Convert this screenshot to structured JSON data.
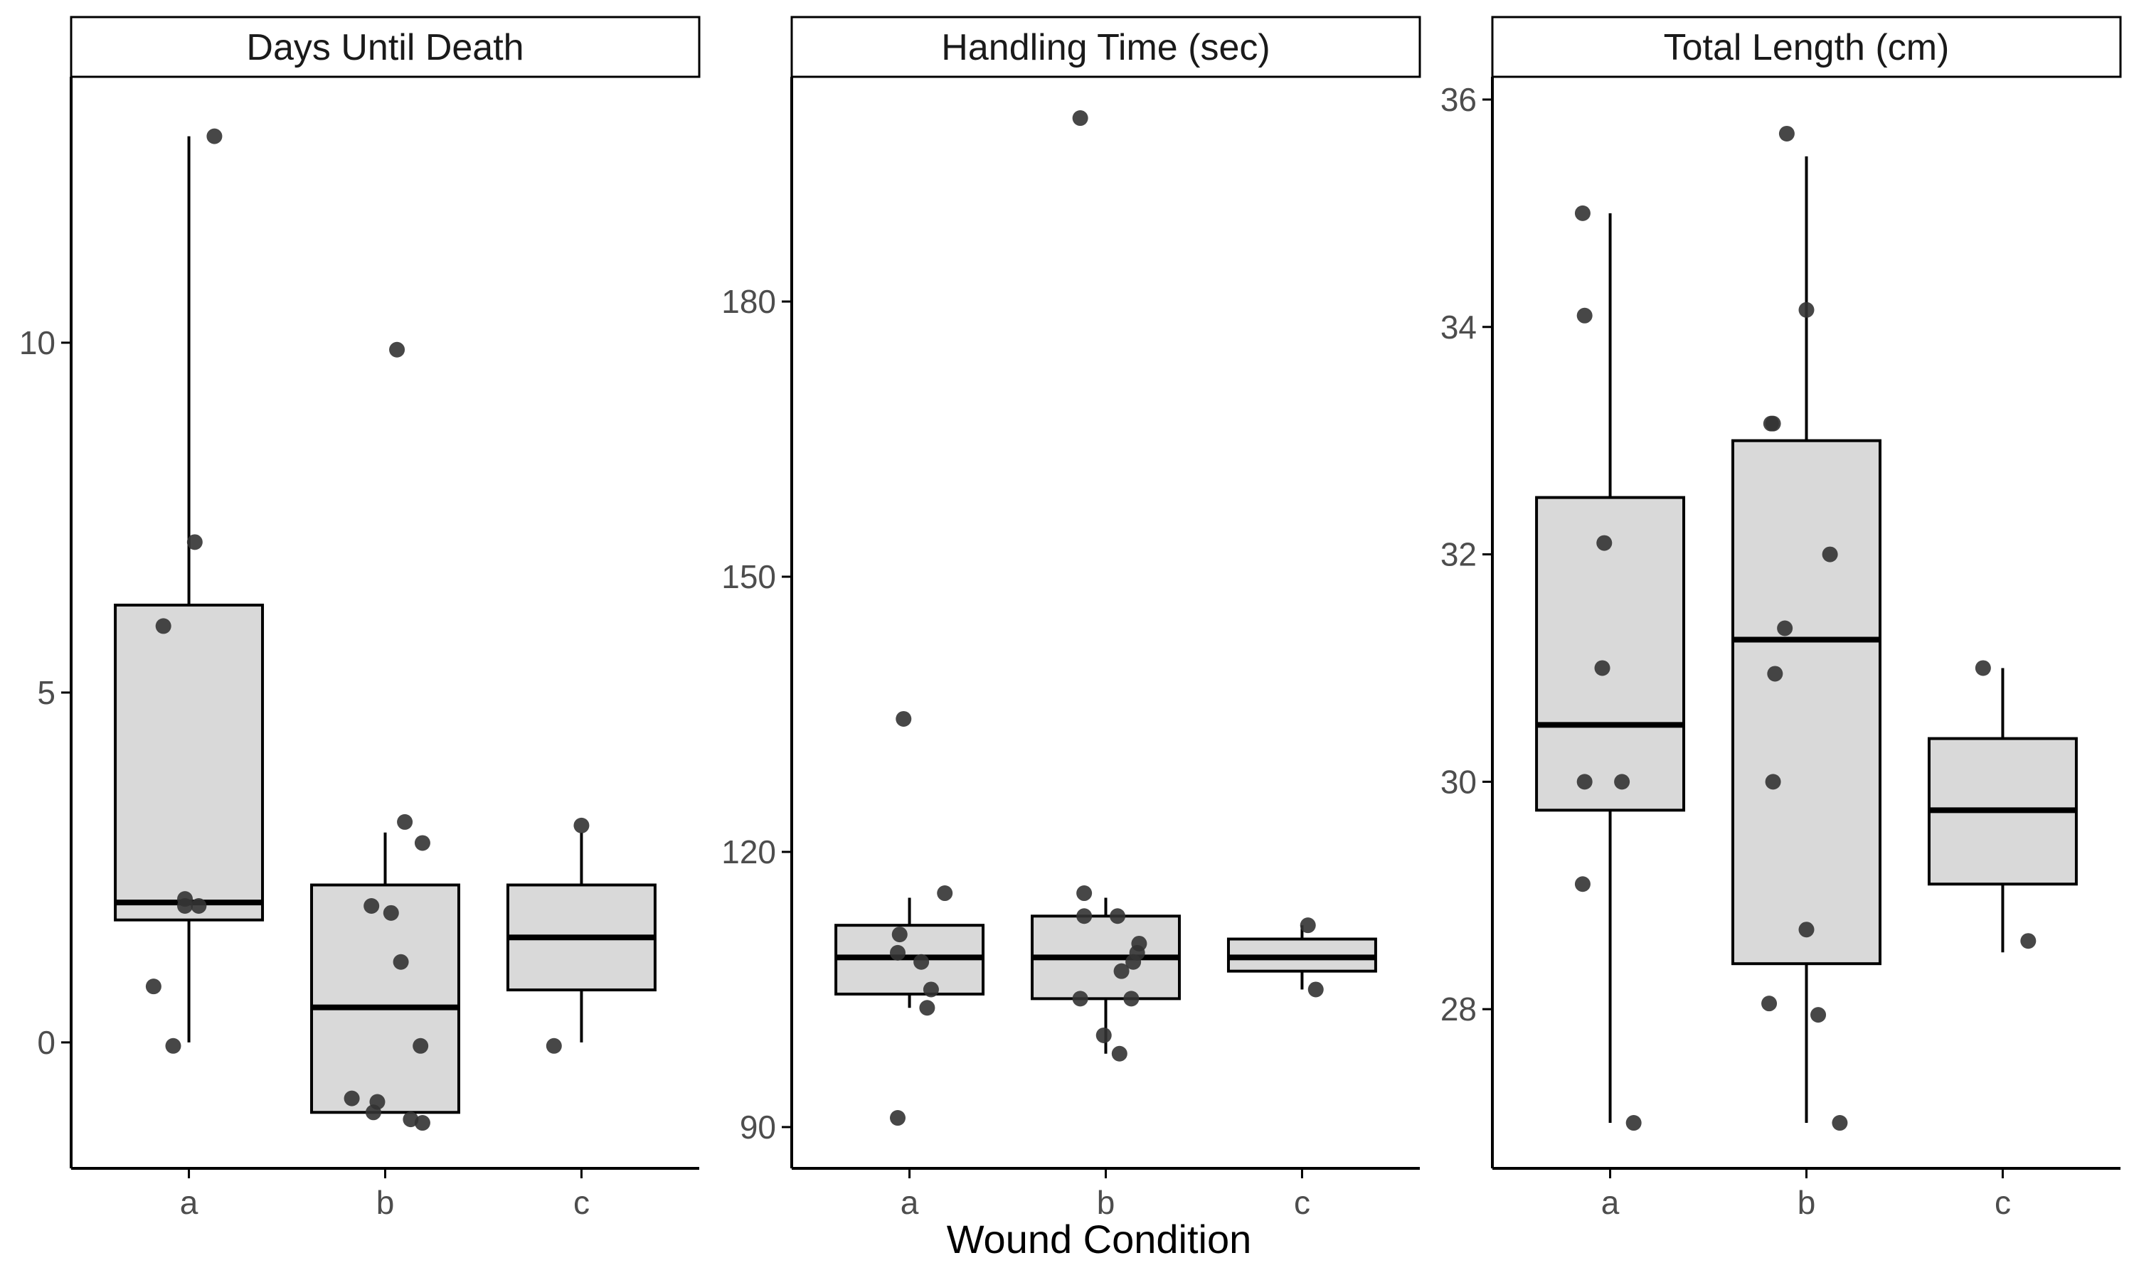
{
  "chart_data": [
    {
      "type": "boxplot",
      "title": "Days Until Death",
      "categories": [
        "a",
        "b",
        "c"
      ],
      "yticks": [
        0,
        5,
        10
      ],
      "ylim": [
        -1.8,
        13.8
      ],
      "boxes": [
        {
          "category": "a",
          "whisker_low": 0,
          "q1": 1.75,
          "median": 2.0,
          "q3": 6.25,
          "whisker_high": 12.95
        },
        {
          "category": "b",
          "whisker_low": -1.0,
          "q1": -1.0,
          "median": 0.5,
          "q3": 2.25,
          "whisker_high": 3.0
        },
        {
          "category": "c",
          "whisker_low": 0,
          "q1": 0.75,
          "median": 1.5,
          "q3": 2.25,
          "whisker_high": 3.0
        }
      ],
      "points": [
        {
          "category": "a",
          "jitter": 0.13,
          "value": 12.95
        },
        {
          "category": "a",
          "jitter": 0.03,
          "value": 7.15
        },
        {
          "category": "a",
          "jitter": -0.13,
          "value": 5.95
        },
        {
          "category": "a",
          "jitter": -0.02,
          "value": 2.05
        },
        {
          "category": "a",
          "jitter": 0.05,
          "value": 1.95
        },
        {
          "category": "a",
          "jitter": -0.02,
          "value": 1.95
        },
        {
          "category": "a",
          "jitter": -0.18,
          "value": 0.8
        },
        {
          "category": "a",
          "jitter": -0.08,
          "value": -0.05
        },
        {
          "category": "b",
          "jitter": 0.06,
          "value": 9.9
        },
        {
          "category": "b",
          "jitter": 0.1,
          "value": 3.15
        },
        {
          "category": "b",
          "jitter": 0.19,
          "value": 2.85
        },
        {
          "category": "b",
          "jitter": -0.07,
          "value": 1.95
        },
        {
          "category": "b",
          "jitter": 0.03,
          "value": 1.85
        },
        {
          "category": "b",
          "jitter": 0.08,
          "value": 1.15
        },
        {
          "category": "b",
          "jitter": 0.18,
          "value": -0.05
        },
        {
          "category": "b",
          "jitter": -0.17,
          "value": -0.8
        },
        {
          "category": "b",
          "jitter": -0.04,
          "value": -0.85
        },
        {
          "category": "b",
          "jitter": -0.06,
          "value": -1.0
        },
        {
          "category": "b",
          "jitter": 0.13,
          "value": -1.1
        },
        {
          "category": "b",
          "jitter": 0.19,
          "value": -1.15
        },
        {
          "category": "c",
          "jitter": 0.0,
          "value": 3.1
        },
        {
          "category": "c",
          "jitter": -0.14,
          "value": -0.05
        }
      ]
    },
    {
      "type": "boxplot",
      "title": "Handling Time (sec)",
      "categories": [
        "a",
        "b",
        "c"
      ],
      "yticks": [
        90,
        120,
        150,
        180
      ],
      "ylim": [
        85.5,
        204.5
      ],
      "boxes": [
        {
          "category": "a",
          "whisker_low": 103,
          "q1": 104.5,
          "median": 108.5,
          "q3": 112.0,
          "whisker_high": 115.0
        },
        {
          "category": "b",
          "whisker_low": 98,
          "q1": 104.0,
          "median": 108.5,
          "q3": 113.0,
          "whisker_high": 115.0
        },
        {
          "category": "c",
          "whisker_low": 105,
          "q1": 107.0,
          "median": 108.5,
          "q3": 110.5,
          "whisker_high": 112.0
        }
      ],
      "points": [
        {
          "category": "a",
          "jitter": -0.03,
          "value": 134.5
        },
        {
          "category": "a",
          "jitter": 0.18,
          "value": 115.5
        },
        {
          "category": "a",
          "jitter": -0.05,
          "value": 111.0
        },
        {
          "category": "a",
          "jitter": -0.06,
          "value": 109.0
        },
        {
          "category": "a",
          "jitter": 0.06,
          "value": 108.0
        },
        {
          "category": "a",
          "jitter": 0.11,
          "value": 105.0
        },
        {
          "category": "a",
          "jitter": 0.09,
          "value": 103.0
        },
        {
          "category": "a",
          "jitter": -0.06,
          "value": 91.0
        },
        {
          "category": "b",
          "jitter": -0.13,
          "value": 200.0
        },
        {
          "category": "b",
          "jitter": -0.11,
          "value": 115.5
        },
        {
          "category": "b",
          "jitter": -0.11,
          "value": 113.0
        },
        {
          "category": "b",
          "jitter": 0.06,
          "value": 113.0
        },
        {
          "category": "b",
          "jitter": 0.17,
          "value": 110.0
        },
        {
          "category": "b",
          "jitter": 0.16,
          "value": 109.0
        },
        {
          "category": "b",
          "jitter": 0.14,
          "value": 108.0
        },
        {
          "category": "b",
          "jitter": 0.08,
          "value": 107.0
        },
        {
          "category": "b",
          "jitter": -0.13,
          "value": 104.0
        },
        {
          "category": "b",
          "jitter": 0.13,
          "value": 104.0
        },
        {
          "category": "b",
          "jitter": -0.01,
          "value": 100.0
        },
        {
          "category": "b",
          "jitter": 0.07,
          "value": 98.0
        },
        {
          "category": "c",
          "jitter": 0.03,
          "value": 112.0
        },
        {
          "category": "c",
          "jitter": 0.07,
          "value": 105.0
        }
      ]
    },
    {
      "type": "boxplot",
      "title": "Total Length (cm)",
      "categories": [
        "a",
        "b",
        "c"
      ],
      "yticks": [
        28,
        30,
        32,
        34,
        36
      ],
      "ylim": [
        26.6,
        36.2
      ],
      "boxes": [
        {
          "category": "a",
          "whisker_low": 27.0,
          "q1": 29.75,
          "median": 30.5,
          "q3": 32.5,
          "whisker_high": 35.0
        },
        {
          "category": "b",
          "whisker_low": 27.0,
          "q1": 28.4,
          "median": 31.25,
          "q3": 33.0,
          "whisker_high": 35.5
        },
        {
          "category": "c",
          "whisker_low": 28.5,
          "q1": 29.1,
          "median": 29.75,
          "q3": 30.38,
          "whisker_high": 31.0
        }
      ],
      "points": [
        {
          "category": "a",
          "jitter": -0.14,
          "value": 35.0
        },
        {
          "category": "a",
          "jitter": -0.13,
          "value": 34.1
        },
        {
          "category": "a",
          "jitter": -0.03,
          "value": 32.1
        },
        {
          "category": "a",
          "jitter": -0.04,
          "value": 31.0
        },
        {
          "category": "a",
          "jitter": 0.06,
          "value": 30.0
        },
        {
          "category": "a",
          "jitter": -0.13,
          "value": 30.0
        },
        {
          "category": "a",
          "jitter": -0.14,
          "value": 29.1
        },
        {
          "category": "a",
          "jitter": 0.12,
          "value": 27.0
        },
        {
          "category": "b",
          "jitter": -0.1,
          "value": 35.7
        },
        {
          "category": "b",
          "jitter": 0.0,
          "value": 34.15
        },
        {
          "category": "b",
          "jitter": -0.17,
          "value": 33.15
        },
        {
          "category": "b",
          "jitter": -0.18,
          "value": 33.15
        },
        {
          "category": "b",
          "jitter": 0.12,
          "value": 32.0
        },
        {
          "category": "b",
          "jitter": -0.11,
          "value": 31.35
        },
        {
          "category": "b",
          "jitter": -0.16,
          "value": 30.95
        },
        {
          "category": "b",
          "jitter": -0.17,
          "value": 30.0
        },
        {
          "category": "b",
          "jitter": 0.0,
          "value": 28.7
        },
        {
          "category": "b",
          "jitter": -0.19,
          "value": 28.05
        },
        {
          "category": "b",
          "jitter": 0.06,
          "value": 27.95
        },
        {
          "category": "b",
          "jitter": 0.17,
          "value": 27.0
        },
        {
          "category": "c",
          "jitter": -0.1,
          "value": 31.0
        },
        {
          "category": "c",
          "jitter": 0.13,
          "value": 28.6
        }
      ]
    }
  ],
  "shared_xlabel": "Wound Condition",
  "style": {
    "box_fill": "#d9d9d9",
    "box_stroke": "#000000",
    "point_color": "#333333",
    "axis_color": "#000000",
    "tick_text_color": "#4d4d4d"
  }
}
